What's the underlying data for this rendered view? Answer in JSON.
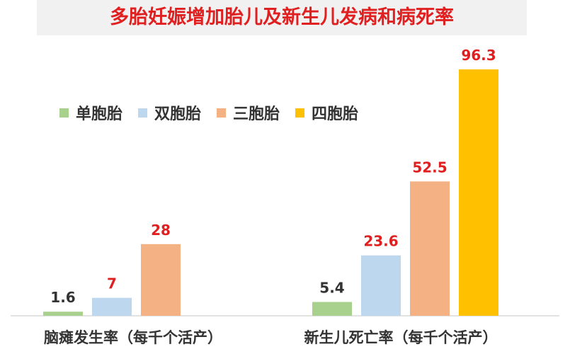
{
  "title": "多胎妊娠增加胎儿及新生儿发病和病死率",
  "chart_data": {
    "type": "bar",
    "categories": [
      "脑瘫发生率（每千个活产）",
      "新生儿死亡率（每千个活产）"
    ],
    "series": [
      {
        "name": "单胞胎",
        "color": "#a9d18e",
        "values": [
          1.6,
          5.4
        ],
        "labels": [
          "1.6",
          "5.4"
        ],
        "label_color": "#333333"
      },
      {
        "name": "双胞胎",
        "color": "#bdd7ee",
        "values": [
          7,
          23.6
        ],
        "labels": [
          "7",
          "23.6"
        ],
        "label_color": "#e02020"
      },
      {
        "name": "三胞胎",
        "color": "#f4b183",
        "values": [
          28,
          52.5
        ],
        "labels": [
          "28",
          "52.5"
        ],
        "label_color": "#e02020"
      },
      {
        "name": "四胞胎",
        "color": "#ffc000",
        "values": [
          null,
          96.3
        ],
        "labels": [
          "",
          "96.3"
        ],
        "label_color": "#e02020"
      }
    ],
    "legend_position": "top-left",
    "grid": false
  }
}
